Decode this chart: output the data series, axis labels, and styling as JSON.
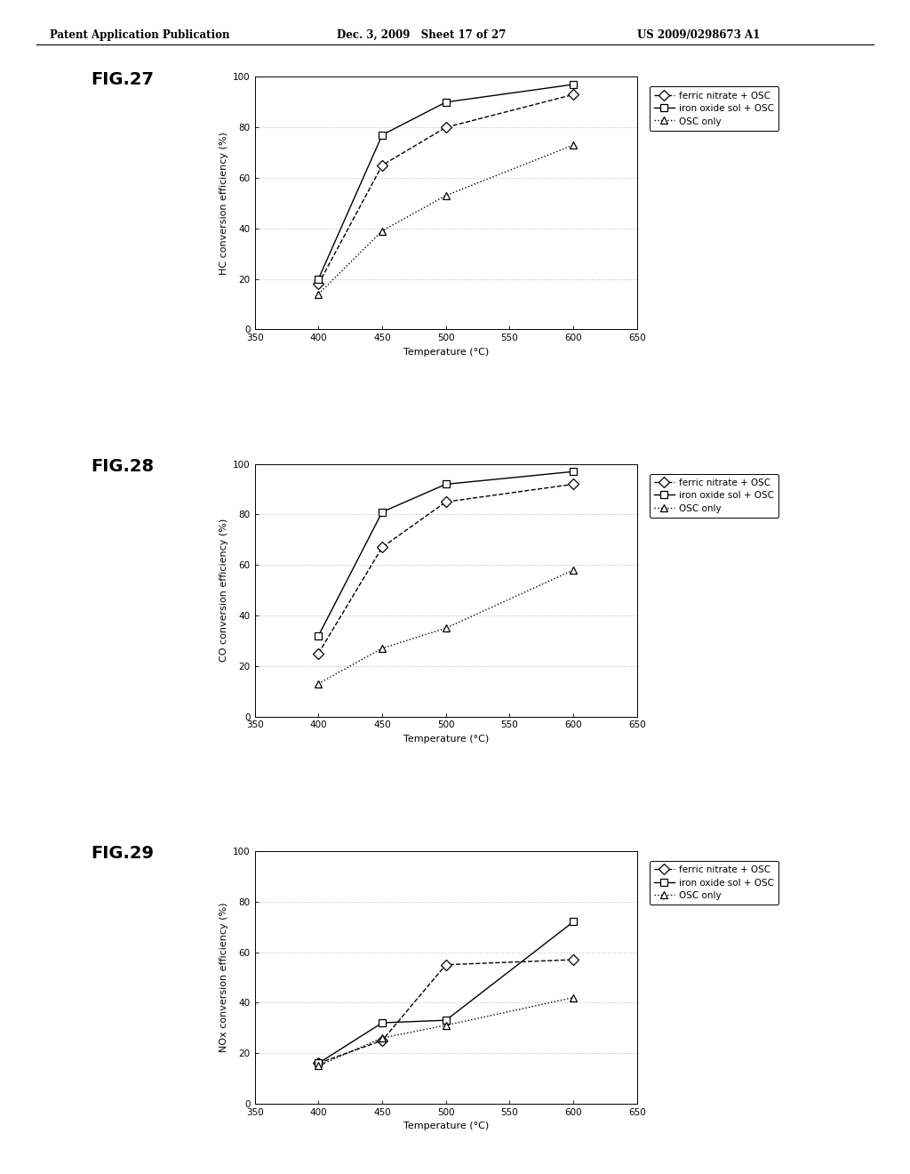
{
  "header_left": "Patent Application Publication",
  "header_mid": "Dec. 3, 2009   Sheet 17 of 27",
  "header_right": "US 2009/0298673 A1",
  "fig27": {
    "label": "FIG.27",
    "ylabel": "HC conversion efficiency (%)",
    "xlabel": "Temperature (°C)",
    "xlim": [
      350,
      650
    ],
    "ylim": [
      0,
      100
    ],
    "xticks": [
      350,
      400,
      450,
      500,
      550,
      600,
      650
    ],
    "yticks": [
      0,
      20,
      40,
      60,
      80,
      100
    ],
    "series": {
      "ferric_nitrate": {
        "x": [
          400,
          450,
          500,
          600
        ],
        "y": [
          18,
          65,
          80,
          93
        ],
        "label": "ferric nitrate + OSC",
        "marker": "D",
        "ls": "--"
      },
      "iron_oxide_sol": {
        "x": [
          400,
          450,
          500,
          600
        ],
        "y": [
          20,
          77,
          90,
          97
        ],
        "label": "iron oxide sol + OSC",
        "marker": "s",
        "ls": "-"
      },
      "osc_only": {
        "x": [
          400,
          450,
          500,
          600
        ],
        "y": [
          14,
          39,
          53,
          73
        ],
        "label": "OSC only",
        "marker": "^",
        "ls": ":"
      }
    }
  },
  "fig28": {
    "label": "FIG.28",
    "ylabel": "CO conversion efficiency (%)",
    "xlabel": "Temperature (°C)",
    "xlim": [
      350,
      650
    ],
    "ylim": [
      0,
      100
    ],
    "xticks": [
      350,
      400,
      450,
      500,
      550,
      600,
      650
    ],
    "yticks": [
      0,
      20,
      40,
      60,
      80,
      100
    ],
    "series": {
      "ferric_nitrate": {
        "x": [
          400,
          450,
          500,
          600
        ],
        "y": [
          25,
          67,
          85,
          92
        ],
        "label": "ferric nitrate + OSC",
        "marker": "D",
        "ls": "--"
      },
      "iron_oxide_sol": {
        "x": [
          400,
          450,
          500,
          600
        ],
        "y": [
          32,
          81,
          92,
          97
        ],
        "label": "iron oxide sol + OSC",
        "marker": "s",
        "ls": "-"
      },
      "osc_only": {
        "x": [
          400,
          450,
          500,
          600
        ],
        "y": [
          13,
          27,
          35,
          58
        ],
        "label": "OSC only",
        "marker": "^",
        "ls": ":"
      }
    }
  },
  "fig29": {
    "label": "FIG.29",
    "ylabel": "NOx conversion efficiency (%)",
    "xlabel": "Temperature (°C)",
    "xlim": [
      350,
      650
    ],
    "ylim": [
      0,
      100
    ],
    "xticks": [
      350,
      400,
      450,
      500,
      550,
      600,
      650
    ],
    "yticks": [
      0,
      20,
      40,
      60,
      80,
      100
    ],
    "series": {
      "ferric_nitrate": {
        "x": [
          400,
          450,
          500,
          600
        ],
        "y": [
          16,
          25,
          55,
          57
        ],
        "label": "ferric nitrate + OSC",
        "marker": "D",
        "ls": "--"
      },
      "iron_oxide_sol": {
        "x": [
          400,
          450,
          500,
          600
        ],
        "y": [
          16,
          32,
          33,
          72
        ],
        "label": "iron oxide sol + OSC",
        "marker": "s",
        "ls": "-"
      },
      "osc_only": {
        "x": [
          400,
          450,
          500,
          600
        ],
        "y": [
          15,
          26,
          31,
          42
        ],
        "label": "OSC only",
        "marker": "^",
        "ls": ":"
      }
    }
  },
  "line_color": "#000000",
  "bg_color": "#ffffff",
  "grid_color": "#bbbbbb",
  "font_size_axis_label": 8,
  "font_size_tick": 7.5,
  "font_size_legend": 7.5,
  "font_size_fig_label": 14,
  "font_size_header": 8.5
}
